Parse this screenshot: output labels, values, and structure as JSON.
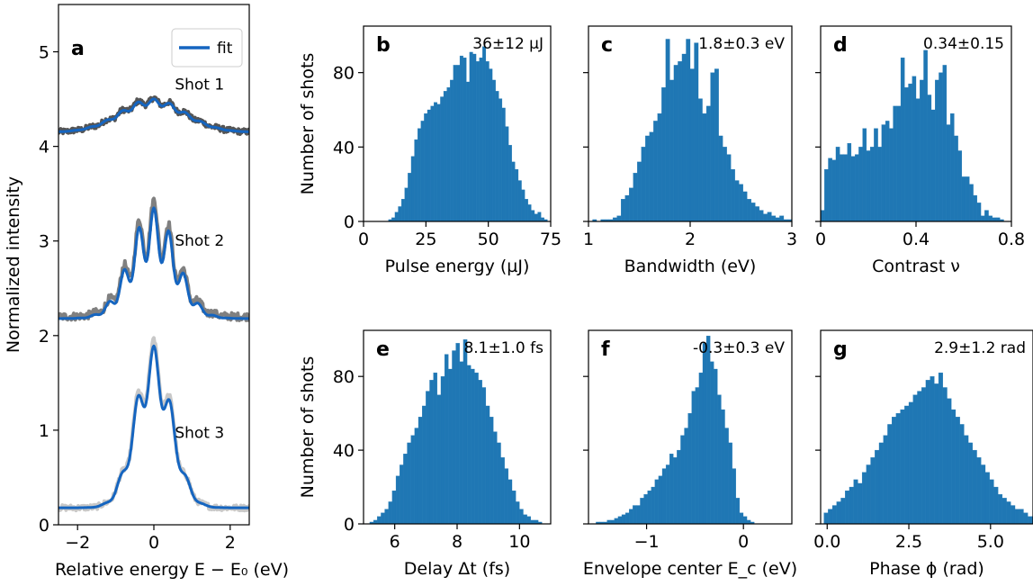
{
  "colors": {
    "bar": "#1f77b4",
    "fit": "#1565c0",
    "shot1": "#555555",
    "shot2": "#808080",
    "shot3": "#c8c8c8"
  },
  "chart_data": [
    {
      "id": "a",
      "type": "line",
      "panel_label": "a",
      "xlabel": "Relative energy E − E₀ (eV)",
      "ylabel": "Normalized intensity",
      "xlim": [
        -2.5,
        2.5
      ],
      "ylim": [
        0,
        5.5
      ],
      "xticks": [
        -2,
        0,
        2
      ],
      "xtick_labels": [
        "−2",
        "0",
        "2"
      ],
      "yticks": [
        0,
        1,
        2,
        3,
        4,
        5
      ],
      "ytick_labels": [
        "0",
        "1",
        "2",
        "3",
        "4",
        "5"
      ],
      "legend": {
        "label": "fit",
        "placement": "top-right"
      },
      "series": [
        {
          "name": "Shot 1",
          "label": "Shot 1",
          "offset": 4.15,
          "envelope_amp": 0.33,
          "envelope_sigma": 0.85,
          "mod_period": 0.42,
          "mod_amp": 0.1,
          "noise": 0.03,
          "fit_offset": 4.15,
          "fit_amp": 0.32
        },
        {
          "name": "Shot 2",
          "label": "Shot 2",
          "offset": 2.2,
          "envelope_amp": 0.95,
          "envelope_sigma": 0.6,
          "mod_period": 0.4,
          "mod_amp": 0.3,
          "noise": 0.04,
          "fit_offset": 2.18,
          "fit_amp": 0.9
        },
        {
          "name": "Shot 3",
          "label": "Shot 3",
          "offset": 0.18,
          "envelope_amp": 1.5,
          "envelope_sigma": 0.48,
          "mod_period": 0.45,
          "mod_amp": 0.18,
          "noise": 0.03,
          "fit_offset": 0.18,
          "fit_amp": 1.45
        }
      ]
    },
    {
      "id": "b",
      "type": "bar",
      "panel_label": "b",
      "stat": "36±12 µJ",
      "xlabel": "Pulse energy (µJ)",
      "ylabel": "Number of shots",
      "xlim": [
        0,
        75
      ],
      "ylim": [
        0,
        105
      ],
      "xticks": [
        0,
        25,
        50,
        75
      ],
      "xtick_labels": [
        "0",
        "25",
        "50",
        "75"
      ],
      "yticks": [
        0,
        40,
        80
      ],
      "ytick_labels": [
        "0",
        "40",
        "80"
      ],
      "bins": {
        "start": 10,
        "width": 1.3
      },
      "values": [
        1,
        2,
        5,
        8,
        12,
        18,
        26,
        35,
        44,
        50,
        54,
        58,
        60,
        62,
        64,
        63,
        67,
        70,
        72,
        76,
        84,
        84,
        89,
        88,
        75,
        91,
        90,
        86,
        88,
        94,
        86,
        82,
        76,
        70,
        66,
        61,
        51,
        41,
        32,
        28,
        22,
        17,
        12,
        9,
        6,
        4,
        5,
        2,
        1,
        0
      ]
    },
    {
      "id": "c",
      "type": "bar",
      "panel_label": "c",
      "stat": "1.8±0.3 eV",
      "xlabel": "Bandwidth (eV)",
      "ylabel": "",
      "xlim": [
        1.0,
        3.0
      ],
      "ylim": [
        0,
        105
      ],
      "xticks": [
        1,
        2,
        3
      ],
      "xtick_labels": [
        "1",
        "2",
        "3"
      ],
      "yticks": [
        0,
        40,
        80
      ],
      "ytick_labels": [
        "",
        "",
        ""
      ],
      "bins": {
        "start": 1.04,
        "width": 0.04
      },
      "values": [
        1,
        0,
        1,
        1,
        1,
        2,
        3,
        12,
        14,
        18,
        26,
        32,
        40,
        46,
        48,
        54,
        58,
        72,
        98,
        76,
        84,
        86,
        90,
        98,
        82,
        96,
        66,
        58,
        62,
        80,
        82,
        46,
        40,
        36,
        28,
        22,
        20,
        16,
        12,
        10,
        8,
        6,
        4,
        5,
        3,
        2,
        3,
        1,
        1,
        2
      ]
    },
    {
      "id": "d",
      "type": "bar",
      "panel_label": "d",
      "stat": "0.34±0.15",
      "xlabel": "Contrast ν",
      "ylabel": "",
      "xlim": [
        0,
        0.8
      ],
      "ylim": [
        0,
        105
      ],
      "xticks": [
        0,
        0.4,
        0.8
      ],
      "xtick_labels": [
        "0",
        "0.4",
        "0.8"
      ],
      "yticks": [
        0,
        40,
        80
      ],
      "ytick_labels": [
        "",
        "",
        ""
      ],
      "bins": {
        "start": 0.0,
        "width": 0.016
      },
      "values": [
        6,
        28,
        34,
        33,
        40,
        36,
        36,
        42,
        35,
        36,
        40,
        50,
        38,
        40,
        50,
        40,
        52,
        54,
        50,
        62,
        62,
        88,
        72,
        74,
        78,
        66,
        76,
        92,
        68,
        60,
        76,
        80,
        84,
        52,
        58,
        46,
        38,
        24,
        24,
        20,
        14,
        10,
        3,
        6,
        3,
        2,
        2,
        1,
        0,
        0
      ]
    },
    {
      "id": "e",
      "type": "bar",
      "panel_label": "e",
      "stat": "8.1±1.0 fs",
      "xlabel": "Delay Δt (fs)",
      "ylabel": "Number of shots",
      "xlim": [
        5.0,
        11.0
      ],
      "ylim": [
        0,
        105
      ],
      "xticks": [
        6,
        8,
        10
      ],
      "xtick_labels": [
        "6",
        "8",
        "10"
      ],
      "yticks": [
        0,
        40,
        80
      ],
      "ytick_labels": [
        "0",
        "40",
        "80"
      ],
      "bins": {
        "start": 5.2,
        "width": 0.12
      },
      "values": [
        1,
        2,
        4,
        6,
        8,
        12,
        18,
        26,
        32,
        38,
        44,
        48,
        52,
        58,
        64,
        72,
        78,
        82,
        70,
        80,
        92,
        84,
        94,
        98,
        88,
        100,
        86,
        84,
        82,
        78,
        74,
        64,
        58,
        50,
        44,
        36,
        30,
        24,
        18,
        12,
        8,
        5,
        4,
        2,
        2,
        1,
        0,
        0,
        0,
        0
      ]
    },
    {
      "id": "f",
      "type": "bar",
      "panel_label": "f",
      "stat": "-0.3±0.3 eV",
      "xlabel": "Envelope center E_c (eV)",
      "ylabel": "",
      "xlim": [
        -1.6,
        0.5
      ],
      "ylim": [
        0,
        105
      ],
      "xticks": [
        -1,
        0
      ],
      "xtick_labels": [
        "−1",
        "0"
      ],
      "yticks": [
        0,
        40,
        80
      ],
      "ytick_labels": [
        "",
        "",
        ""
      ],
      "bins": {
        "start": -1.56,
        "width": 0.038
      },
      "values": [
        0,
        1,
        1,
        1,
        2,
        2,
        3,
        4,
        5,
        6,
        8,
        10,
        10,
        14,
        16,
        18,
        20,
        24,
        26,
        30,
        32,
        38,
        36,
        40,
        48,
        52,
        60,
        72,
        74,
        82,
        98,
        102,
        88,
        84,
        70,
        62,
        52,
        44,
        30,
        14,
        6,
        4,
        2,
        1,
        0,
        0,
        0,
        0,
        0,
        0
      ]
    },
    {
      "id": "g",
      "type": "bar",
      "panel_label": "g",
      "stat": "2.9±1.2 rad",
      "xlabel": "Phase ϕ (rad)",
      "ylabel": "",
      "xlim": [
        -0.2,
        6.3
      ],
      "ylim": [
        0,
        105
      ],
      "xticks": [
        0,
        2.5,
        5
      ],
      "xtick_labels": [
        "0.0",
        "2.5",
        "5.0"
      ],
      "yticks": [
        0,
        40,
        80
      ],
      "ytick_labels": [
        "",
        "",
        ""
      ],
      "bins": {
        "start": -0.1,
        "width": 0.13
      },
      "values": [
        6,
        8,
        10,
        12,
        14,
        18,
        20,
        24,
        22,
        28,
        32,
        36,
        40,
        44,
        48,
        54,
        58,
        60,
        62,
        64,
        66,
        70,
        72,
        74,
        78,
        80,
        76,
        82,
        74,
        68,
        62,
        58,
        54,
        48,
        44,
        40,
        36,
        32,
        28,
        24,
        20,
        16,
        14,
        12,
        10,
        8,
        8,
        6,
        4,
        4
      ]
    }
  ]
}
